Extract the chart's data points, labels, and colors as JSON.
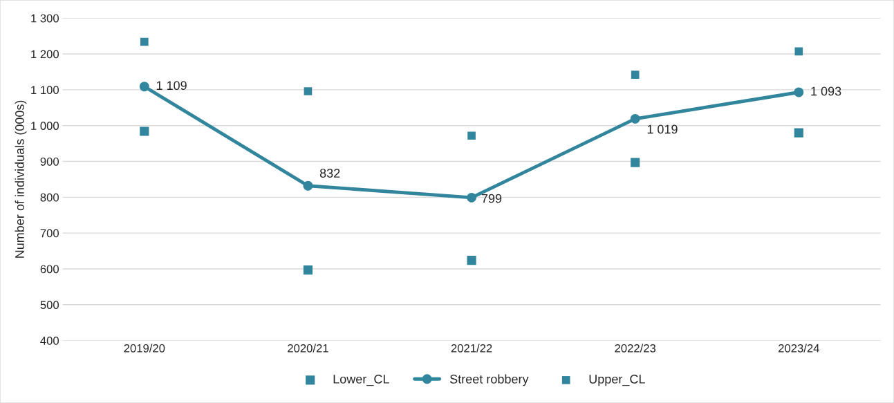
{
  "chart_data": {
    "type": "line",
    "ylabel": "Number of individuals (000s)",
    "categories": [
      "2019/20",
      "2020/21",
      "2021/22",
      "2022/23",
      "2023/24"
    ],
    "series": [
      {
        "name": "Lower_CL",
        "type": "scatter",
        "marker": "square",
        "color": "#31859c",
        "values": [
          984,
          597,
          624,
          897,
          980
        ]
      },
      {
        "name": "Street robbery",
        "marker": "circle",
        "color": "#31859c",
        "values": [
          1109,
          832,
          799,
          1019,
          1093
        ],
        "value_labels": [
          "1 109",
          "832",
          "799",
          "1 019",
          "1 093"
        ]
      },
      {
        "name": "Upper_CL",
        "type": "scatter",
        "marker": "square",
        "color": "#31859c",
        "values": [
          1234,
          1096,
          972,
          1142,
          1207
        ]
      }
    ],
    "ylim": [
      400,
      1300
    ],
    "yticks": [
      400,
      500,
      600,
      700,
      800,
      900,
      {
        "value": 1000,
        "label": "1 000"
      },
      {
        "value": 1100,
        "label": "1 100"
      },
      {
        "value": 1200,
        "label": "1 200"
      },
      {
        "value": 1300,
        "label": "1 300"
      }
    ],
    "grid": "y",
    "legend": "bottom"
  }
}
